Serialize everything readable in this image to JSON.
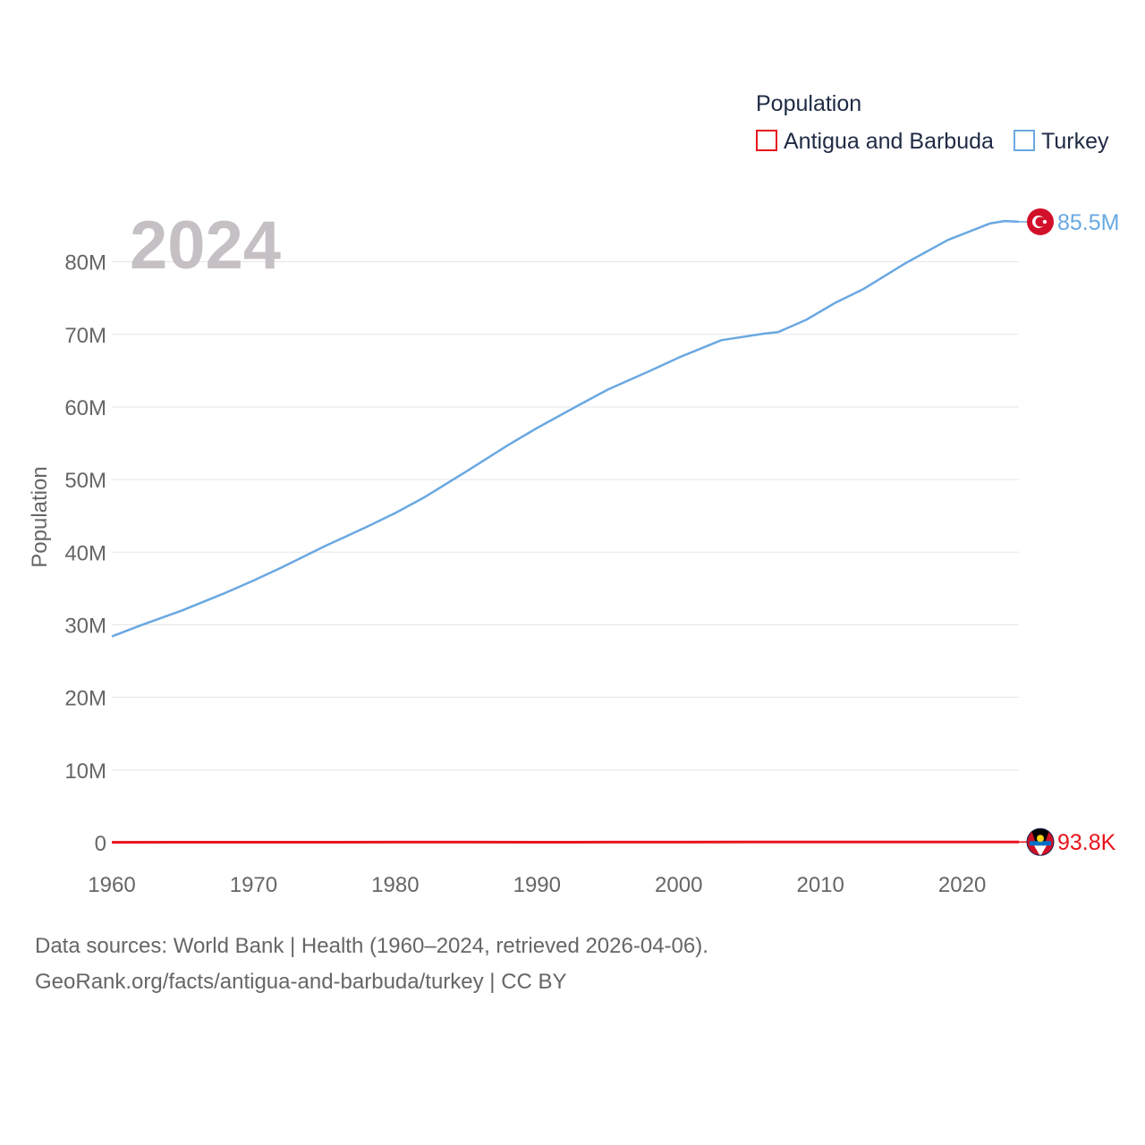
{
  "chart_data": {
    "type": "line",
    "title": "",
    "current_year": "2024",
    "xlabel": "",
    "ylabel": "Population",
    "xlim": [
      1960,
      2024
    ],
    "ylim": [
      0,
      85000000
    ],
    "x_ticks": [
      1960,
      1970,
      1980,
      1990,
      2000,
      2010,
      2020
    ],
    "y_ticks": [
      {
        "value": 0,
        "label": "0"
      },
      {
        "value": 10000000,
        "label": "10M"
      },
      {
        "value": 20000000,
        "label": "20M"
      },
      {
        "value": 30000000,
        "label": "30M"
      },
      {
        "value": 40000000,
        "label": "40M"
      },
      {
        "value": 50000000,
        "label": "50M"
      },
      {
        "value": 60000000,
        "label": "60M"
      },
      {
        "value": 70000000,
        "label": "70M"
      },
      {
        "value": 80000000,
        "label": "80M"
      }
    ],
    "legend": {
      "title": "Population",
      "placement": "top-right"
    },
    "series": [
      {
        "name": "Antigua and Barbuda",
        "color": "#e8141e",
        "end_label": "93.8K",
        "flag_icon": "antigua-and-barbuda-flag-icon",
        "points": [
          [
            1960,
            54000
          ],
          [
            1965,
            58000
          ],
          [
            1970,
            65000
          ],
          [
            1975,
            67000
          ],
          [
            1980,
            69000
          ],
          [
            1985,
            68000
          ],
          [
            1990,
            63000
          ],
          [
            1995,
            69000
          ],
          [
            2000,
            76000
          ],
          [
            2005,
            81000
          ],
          [
            2010,
            85000
          ],
          [
            2015,
            89000
          ],
          [
            2020,
            92000
          ],
          [
            2024,
            93800
          ]
        ]
      },
      {
        "name": "Turkey",
        "color": "#6aa8e2",
        "end_label": "85.5M",
        "flag_icon": "turkey-flag-icon",
        "points": [
          [
            1960,
            28400000
          ],
          [
            1962,
            29900000
          ],
          [
            1965,
            32000000
          ],
          [
            1968,
            34400000
          ],
          [
            1970,
            36100000
          ],
          [
            1972,
            37900000
          ],
          [
            1975,
            40800000
          ],
          [
            1978,
            43500000
          ],
          [
            1980,
            45400000
          ],
          [
            1982,
            47500000
          ],
          [
            1985,
            51100000
          ],
          [
            1988,
            54800000
          ],
          [
            1990,
            57100000
          ],
          [
            1993,
            60300000
          ],
          [
            1995,
            62400000
          ],
          [
            1998,
            65000000
          ],
          [
            2000,
            66800000
          ],
          [
            2003,
            69200000
          ],
          [
            2006,
            70100000
          ],
          [
            2007,
            70300000
          ],
          [
            2009,
            72000000
          ],
          [
            2011,
            74300000
          ],
          [
            2013,
            76200000
          ],
          [
            2016,
            79800000
          ],
          [
            2019,
            83000000
          ],
          [
            2022,
            85300000
          ],
          [
            2023,
            85600000
          ],
          [
            2024,
            85500000
          ]
        ]
      }
    ]
  },
  "footer": {
    "source_line": "Data sources: World Bank | Health (1960–2024, retrieved 2026-04-06).",
    "credit_line": "GeoRank.org/facts/antigua-and-barbuda/turkey | CC BY"
  }
}
